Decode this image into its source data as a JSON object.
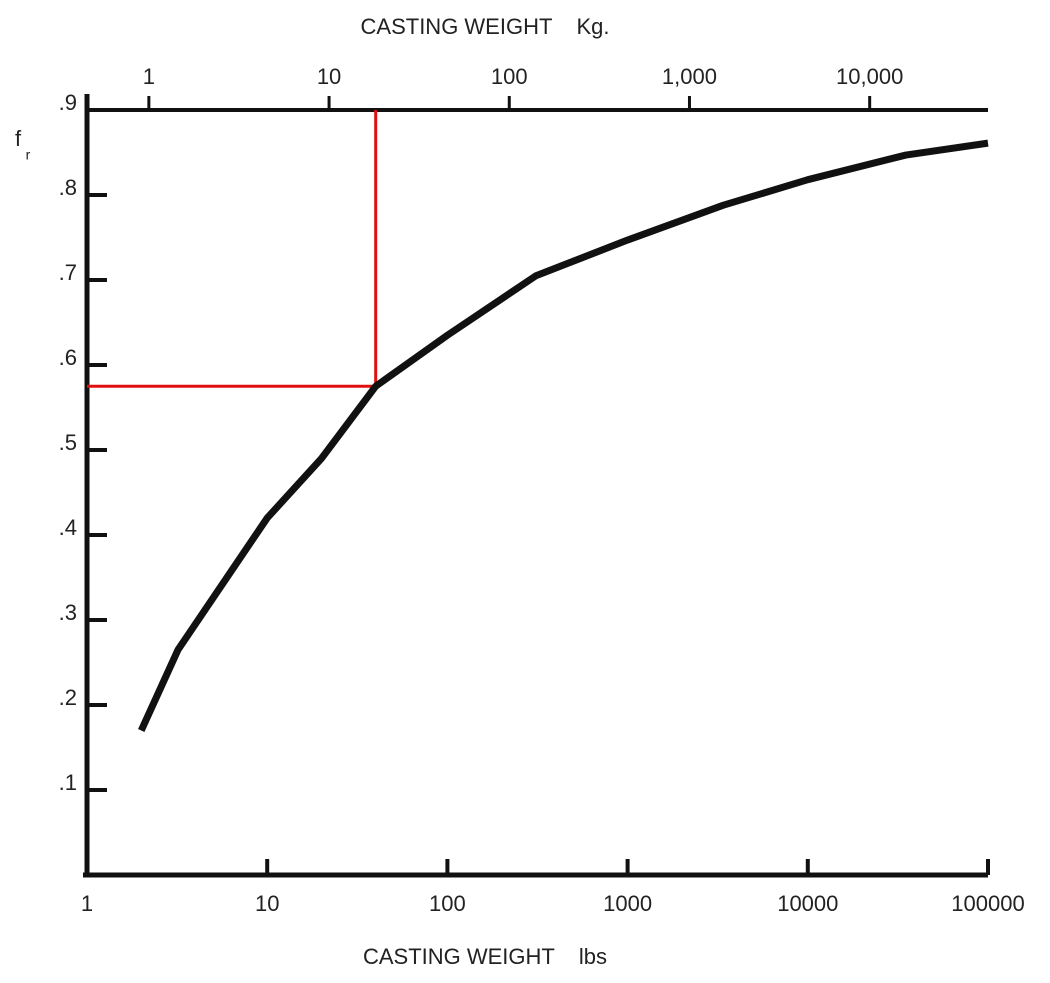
{
  "chart_data": {
    "type": "line",
    "xlabel": "CASTING WEIGHT    lbs",
    "x2label": "CASTING WEIGHT    Kg.",
    "ylabel": "f",
    "ylabel_sub": "r",
    "xscale": "log",
    "xlim": [
      1,
      100000
    ],
    "xticks": [
      1,
      10,
      100,
      1000,
      10000,
      100000
    ],
    "x2lim": [
      0.4536,
      45359
    ],
    "x2ticks": [
      1,
      10,
      100,
      {
        "value": 1000,
        "label": "1,000"
      },
      {
        "value": 10000,
        "label": "10,000"
      }
    ],
    "ylim": [
      0,
      0.9
    ],
    "yticks": [
      {
        "value": 0.1,
        "label": ".1"
      },
      {
        "value": 0.2,
        "label": ".2"
      },
      {
        "value": 0.3,
        "label": ".3"
      },
      {
        "value": 0.4,
        "label": ".4"
      },
      {
        "value": 0.5,
        "label": ".5"
      },
      {
        "value": 0.6,
        "label": ".6"
      },
      {
        "value": 0.7,
        "label": ".7"
      },
      {
        "value": 0.8,
        "label": ".8"
      },
      {
        "value": 0.9,
        "label": ".9"
      }
    ],
    "x": [
      2,
      3.2,
      10,
      20,
      40,
      100,
      310,
      1000,
      3400,
      10000,
      35000,
      100000
    ],
    "series": [
      {
        "color": "#111111",
        "values": [
          0.17,
          0.265,
          0.42,
          0.49,
          0.575,
          0.635,
          0.705,
          0.747,
          0.788,
          0.818,
          0.847,
          0.861
        ]
      }
    ],
    "reference": {
      "x": 40,
      "y": 0.575,
      "color": "#e01010"
    }
  }
}
